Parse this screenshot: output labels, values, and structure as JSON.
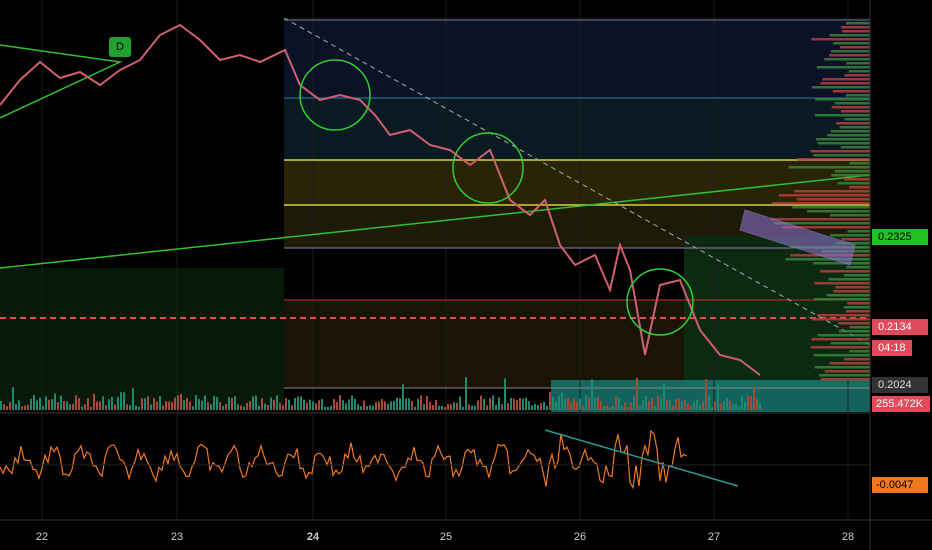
{
  "chart": {
    "marker": "D",
    "x_axis_labels": [
      "22",
      "23",
      "24",
      "25",
      "26",
      "27",
      "28"
    ],
    "price_labels": {
      "level_high": "0.2325",
      "last_price": "0.2134",
      "countdown": "04:18",
      "level_low": "0.2024",
      "volume": "255.472K",
      "oscillator": "-0.0047"
    }
  }
}
